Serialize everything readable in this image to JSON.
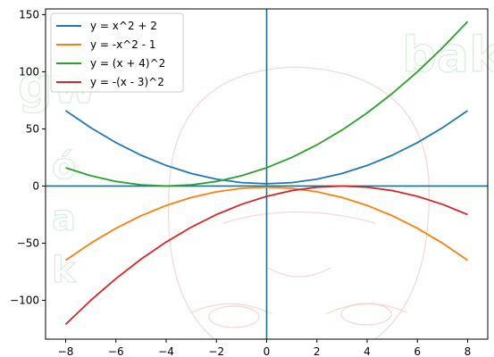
{
  "chart_data": {
    "type": "line",
    "title": "",
    "xlabel": "",
    "ylabel": "",
    "xlim": [
      -8.8,
      8.8
    ],
    "ylim": [
      -134,
      155
    ],
    "xticks": [
      -8,
      -6,
      -4,
      -2,
      0,
      2,
      4,
      6,
      8
    ],
    "yticks": [
      -100,
      -50,
      0,
      50,
      100,
      150
    ],
    "x_tick_labels": [
      "−8",
      "−6",
      "−4",
      "−2",
      "0",
      "2",
      "4",
      "6",
      "8"
    ],
    "y_tick_labels": [
      "−100",
      "−50",
      "0",
      "50",
      "100",
      "150"
    ],
    "grid": false,
    "legend_position": "top-left",
    "reference_lines": {
      "x": 0,
      "y": 0,
      "color": "#1f6f8b"
    },
    "x": [
      -8,
      -7,
      -6,
      -5,
      -4,
      -3,
      -2,
      -1,
      0,
      1,
      2,
      3,
      4,
      5,
      6,
      7,
      8
    ],
    "series": [
      {
        "name": "y = x^2 + 2",
        "color": "#1f77b4",
        "values": [
          66,
          51,
          38,
          27,
          18,
          11,
          6,
          3,
          2,
          3,
          6,
          11,
          18,
          27,
          38,
          51,
          66
        ]
      },
      {
        "name": "y = -x^2 - 1",
        "color": "#ff7f0e",
        "values": [
          -65,
          -50,
          -37,
          -26,
          -17,
          -10,
          -5,
          -2,
          -1,
          -2,
          -5,
          -10,
          -17,
          -26,
          -37,
          -50,
          -65
        ]
      },
      {
        "name": "y = (x + 4)^2",
        "color": "#2ca02c",
        "values": [
          16,
          9,
          4,
          1,
          0,
          1,
          4,
          9,
          16,
          25,
          36,
          49,
          64,
          81,
          100,
          121,
          144
        ]
      },
      {
        "name": "y = -(x - 3)^2",
        "color": "#d62728",
        "values": [
          -121,
          -100,
          -81,
          -64,
          -49,
          -36,
          -25,
          -16,
          -9,
          -4,
          -1,
          0,
          -1,
          -4,
          -9,
          -16,
          -25
        ]
      }
    ]
  }
}
